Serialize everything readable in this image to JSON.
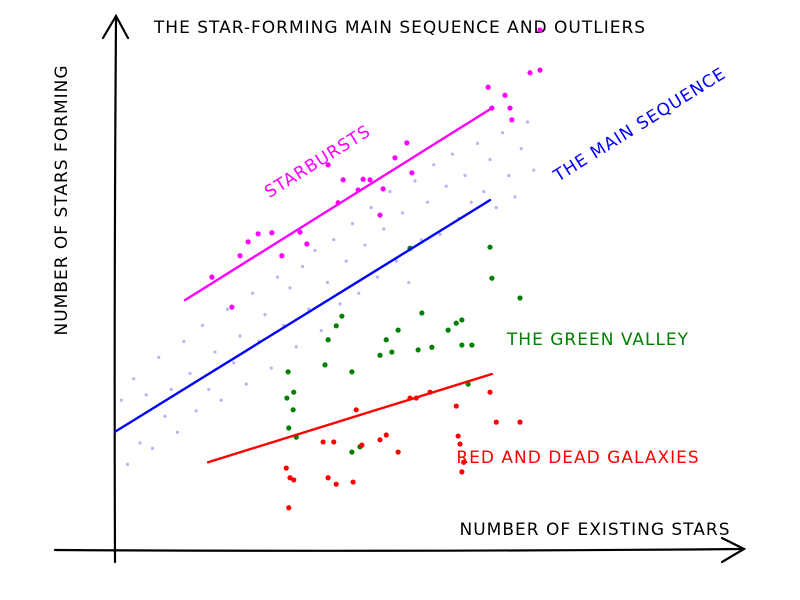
{
  "chart_data": {
    "type": "scatter",
    "title": "THE STAR-FORMING MAIN SEQUENCE AND OUTLIERS",
    "x_label": "NUMBER OF EXISTING STARS",
    "y_label": "NUMBER OF STARS FORMING",
    "xlim": [
      0,
      10
    ],
    "ylim": [
      0,
      10
    ],
    "series": [
      {
        "name": "THE MAIN SEQUENCE",
        "color": "#0000ff",
        "x": [
          0.1,
          0.2,
          0.3,
          0.4,
          0.5,
          0.6,
          0.7,
          0.8,
          0.9,
          1.0,
          1.1,
          1.2,
          1.3,
          1.4,
          1.5,
          1.6,
          1.7,
          1.8,
          1.9,
          2.0,
          2.1,
          2.2,
          2.3,
          2.4,
          2.5,
          2.6,
          2.7,
          2.8,
          2.9,
          3.0,
          3.1,
          3.2,
          3.3,
          3.4,
          3.5,
          3.6,
          3.7,
          3.8,
          3.9,
          4.0,
          4.1,
          4.2,
          4.3,
          4.4,
          4.5,
          4.6,
          4.7,
          4.8,
          4.9,
          5.0,
          5.1,
          5.2,
          5.3,
          5.4,
          5.5,
          5.6,
          5.7,
          5.8,
          5.9,
          6.0,
          6.1,
          6.2,
          6.3,
          6.4,
          6.5,
          6.6,
          6.7
        ],
        "y": [
          2.8,
          1.6,
          3.2,
          2.0,
          2.9,
          1.9,
          3.6,
          2.5,
          3.0,
          2.2,
          3.9,
          3.3,
          2.6,
          4.2,
          3.0,
          3.7,
          2.8,
          4.5,
          3.5,
          4.0,
          3.1,
          4.8,
          3.9,
          4.4,
          3.4,
          5.1,
          4.2,
          4.9,
          3.8,
          5.3,
          4.5,
          5.6,
          4.1,
          5.0,
          5.8,
          4.6,
          5.4,
          6.1,
          4.8,
          5.7,
          6.4,
          5.1,
          6.0,
          6.7,
          5.4,
          6.3,
          5.0,
          6.9,
          5.8,
          6.5,
          7.2,
          5.9,
          6.8,
          7.4,
          6.2,
          7.0,
          6.5,
          7.6,
          6.7,
          7.3,
          6.4,
          7.8,
          7.0,
          6.6,
          7.5,
          8.0,
          7.1
        ],
        "fit": {
          "x": [
            0,
            6.0
          ],
          "y": [
            2.21,
            6.54
          ]
        }
      },
      {
        "name": "STARBURSTS",
        "color": "#ff00ff",
        "x": [
          1.55,
          1.87,
          2.0,
          2.13,
          2.29,
          2.51,
          2.67,
          3.07,
          2.96,
          3.57,
          3.65,
          3.89,
          3.97,
          4.08,
          4.24,
          4.29,
          4.48,
          4.67,
          4.75,
          3.41,
          5.97,
          6.03,
          6.24,
          6.32,
          6.35,
          6.64,
          6.8,
          6.8
        ],
        "y": [
          5.1,
          4.54,
          5.5,
          5.76,
          5.91,
          5.93,
          5.5,
          5.72,
          5.94,
          6.49,
          6.92,
          6.73,
          6.93,
          6.92,
          6.26,
          6.75,
          7.33,
          7.61,
          7.05,
          7.2,
          8.65,
          8.26,
          8.5,
          8.26,
          8.04,
          8.92,
          8.97,
          9.72
        ],
        "fit": {
          "x": [
            1.12,
            6.03
          ],
          "y": [
            4.67,
            8.26
          ]
        }
      },
      {
        "name": "THE GREEN VALLEY",
        "color": "#008000",
        "x": [
          2.77,
          2.75,
          2.86,
          2.85,
          2.78,
          2.9,
          3.36,
          3.41,
          3.54,
          3.63,
          3.79,
          3.79,
          3.92,
          4.24,
          4.34,
          4.43,
          4.53,
          4.72,
          4.85,
          4.91,
          5.07,
          5.33,
          5.46,
          5.55,
          5.55,
          5.71,
          6.0,
          6.03,
          6.48,
          5.65
        ],
        "y": [
          3.33,
          2.84,
          2.95,
          2.62,
          2.28,
          2.11,
          3.46,
          3.93,
          4.19,
          4.37,
          3.33,
          1.83,
          1.93,
          3.64,
          3.93,
          3.7,
          4.11,
          5.64,
          3.74,
          4.43,
          3.79,
          4.11,
          4.24,
          4.3,
          3.83,
          3.83,
          5.66,
          5.08,
          4.71,
          3.1
        ]
      },
      {
        "name": "RED AND DEAD GALAXIES",
        "color": "#ff0000",
        "x": [
          2.74,
          2.8,
          2.86,
          2.78,
          3.33,
          3.5,
          3.41,
          3.54,
          3.81,
          3.86,
          3.95,
          4.24,
          4.34,
          4.53,
          4.72,
          4.82,
          5.04,
          5.46,
          5.49,
          5.52,
          5.55,
          5.58,
          6.0,
          6.1,
          6.48
        ],
        "y": [
          1.53,
          1.35,
          1.31,
          0.79,
          2.02,
          2.02,
          1.35,
          1.23,
          1.27,
          2.62,
          1.96,
          2.06,
          2.15,
          1.83,
          2.84,
          2.84,
          2.95,
          2.69,
          2.13,
          1.98,
          1.46,
          1.64,
          2.95,
          2.39,
          2.39
        ],
        "fit": {
          "x": [
            1.49,
            6.03
          ],
          "y": [
            1.64,
            3.29
          ]
        }
      }
    ]
  }
}
